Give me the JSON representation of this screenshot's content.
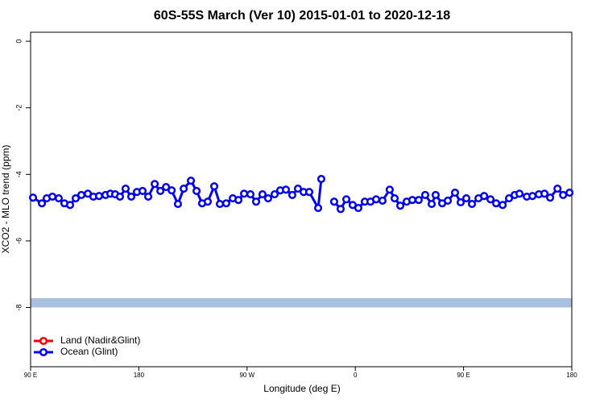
{
  "chart_data": {
    "type": "line",
    "title": "60S-55S March (Ver 10)   2015-01-01 to 2020-12-18",
    "xlabel": "Longitude (deg E)",
    "ylabel": "XCO2 - MLO trend (ppm)",
    "xlim": [
      90,
      540
    ],
    "xticks": [
      {
        "value": 90,
        "label": "90 E"
      },
      {
        "value": 180,
        "label": "180"
      },
      {
        "value": 270,
        "label": "90 W"
      },
      {
        "value": 360,
        "label": "0"
      },
      {
        "value": 450,
        "label": "90 E"
      },
      {
        "value": 540,
        "label": "180"
      }
    ],
    "ylim": [
      -9.78,
      0.27
    ],
    "yticks": [
      0,
      -2,
      -4,
      -6,
      -8
    ],
    "band": {
      "range": [
        -8.0,
        -7.72
      ],
      "color": "#a8bfe0"
    },
    "legend_position": "bottom-left",
    "series": [
      {
        "name": "Land (Nadir&Glint)",
        "color": "#ff0000",
        "values": []
      },
      {
        "name": "Ocean (Glint)",
        "color": "#0000ee",
        "x": [
          92.0,
          99.4,
          103.4,
          108.1,
          113.4,
          118.1,
          122.8,
          127.5,
          132.2,
          137.6,
          142.2,
          146.9,
          152.3,
          156.3,
          160.3,
          164.3,
          169.0,
          173.7,
          178.4,
          183.1,
          187.8,
          193.2,
          197.9,
          202.6,
          207.3,
          212.5,
          217.3,
          223.3,
          228.0,
          232.6,
          237.3,
          242.7,
          247.4,
          252.7,
          258.1,
          262.8,
          267.5,
          272.8,
          277.5,
          282.8,
          287.5,
          292.9,
          297.6,
          302.3,
          307.6,
          312.3,
          317.0,
          321.7,
          329.1,
          331.7,
          337.0,
          342.4,
          347.8,
          352.5,
          357.8,
          362.5,
          367.9,
          372.6,
          377.3,
          382.6,
          388.6,
          392.7,
          397.4,
          402.7,
          407.4,
          412.7,
          418.1,
          423.5,
          426.8,
          432.2,
          436.9,
          442.9,
          447.6,
          452.3,
          457.0,
          462.4,
          467.1,
          472.4,
          477.1,
          482.5,
          487.8,
          492.5,
          496.5,
          502.6,
          507.3,
          512.6,
          517.3,
          522.0,
          528.1,
          532.8,
          538.1
        ],
        "values": [
          -4.7,
          -4.87,
          -4.72,
          -4.67,
          -4.72,
          -4.87,
          -4.92,
          -4.72,
          -4.62,
          -4.58,
          -4.67,
          -4.65,
          -4.62,
          -4.58,
          -4.6,
          -4.67,
          -4.43,
          -4.67,
          -4.53,
          -4.5,
          -4.67,
          -4.29,
          -4.5,
          -4.38,
          -4.48,
          -4.89,
          -4.43,
          -4.19,
          -4.5,
          -4.87,
          -4.82,
          -4.36,
          -4.89,
          -4.87,
          -4.72,
          -4.77,
          -4.58,
          -4.6,
          -4.82,
          -4.6,
          -4.72,
          -4.6,
          -4.48,
          -4.46,
          -4.62,
          -4.43,
          -4.53,
          -4.53,
          -5.01,
          -4.14,
          null,
          -4.82,
          -5.04,
          -4.75,
          -4.92,
          -5.01,
          -4.82,
          -4.82,
          -4.75,
          -4.79,
          -4.46,
          -4.72,
          -4.94,
          -4.82,
          -4.77,
          -4.77,
          -4.62,
          -4.89,
          -4.62,
          -4.87,
          -4.79,
          -4.55,
          -4.84,
          -4.72,
          -4.89,
          -4.72,
          -4.65,
          -4.75,
          -4.87,
          -4.92,
          -4.72,
          -4.62,
          -4.58,
          -4.67,
          -4.65,
          -4.6,
          -4.58,
          -4.7,
          -4.43,
          -4.62,
          -4.55
        ]
      }
    ]
  }
}
